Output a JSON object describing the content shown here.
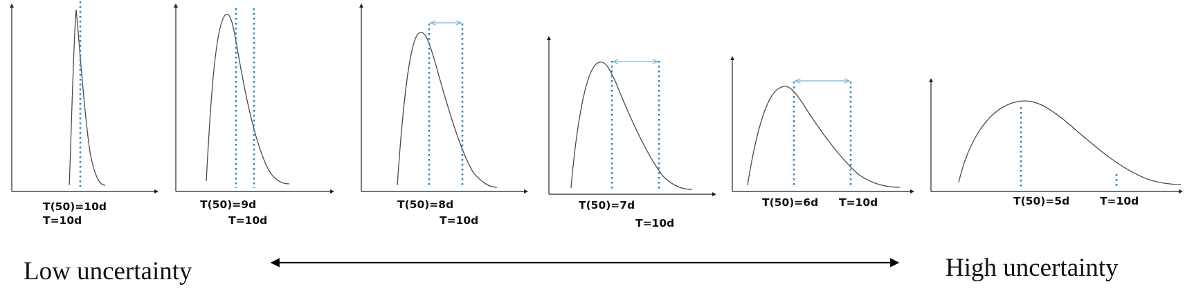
{
  "panels": [
    {
      "id": "p1",
      "t50_label": "T(50)=10d",
      "t_label": "T=10d",
      "label_layout": "stacked",
      "show_span_arrow": false
    },
    {
      "id": "p2",
      "t50_label": "T(50)=9d",
      "t_label": "T=10d",
      "label_layout": "stacked",
      "show_span_arrow": false
    },
    {
      "id": "p3",
      "t50_label": "T(50)=8d",
      "t_label": "T=10d",
      "label_layout": "stacked",
      "show_span_arrow": true
    },
    {
      "id": "p4",
      "t50_label": "T(50)=7d",
      "t_label": "T=10d",
      "label_layout": "stacked",
      "show_span_arrow": true
    },
    {
      "id": "p5",
      "t50_label": "T(50)=6d",
      "t_label": "T=10d",
      "label_layout": "inline",
      "show_span_arrow": true
    },
    {
      "id": "p6",
      "t50_label": "T(50)=5d",
      "t_label": "T=10d",
      "label_layout": "inline",
      "show_span_arrow": false
    }
  ],
  "scale": {
    "left_label": "Low uncertainty",
    "right_label": "High uncertainty"
  },
  "colors": {
    "curve": "#4a4a4a",
    "axis": "#222222",
    "marker_line": "#2e86c8",
    "span_arrow": "#73b3dc"
  }
}
